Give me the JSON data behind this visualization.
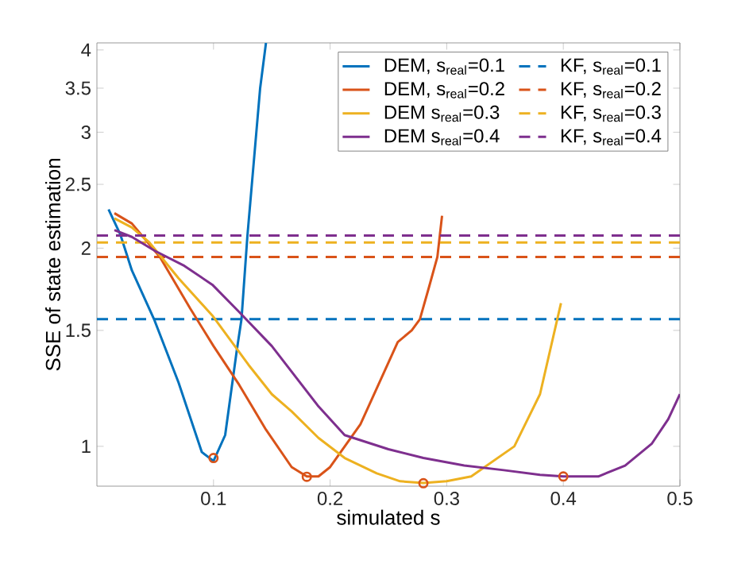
{
  "chart_data": {
    "type": "line",
    "xlabel": "simulated s",
    "ylabel": "SSE of state estimation",
    "log": "y",
    "xlim": [
      0,
      0.5
    ],
    "ylim": [
      0.87,
      4.1
    ],
    "xticks": [
      0.1,
      0.2,
      0.3,
      0.4,
      0.5
    ],
    "yticks": [
      1,
      1.5,
      2,
      2.5,
      3,
      3.5,
      4
    ],
    "legend": "top right",
    "grid": false,
    "marker": "none",
    "series": [
      {
        "name": "DEM, s$_{real}$=0.1",
        "color": "#0072bd",
        "line_style": "solid",
        "x": [
          0.01,
          0.02,
          0.03,
          0.049,
          0.07,
          0.09,
          0.1,
          0.11,
          0.12,
          0.124,
          0.129,
          0.14,
          0.145
        ],
        "values": [
          2.29,
          2.1,
          1.85,
          1.56,
          1.25,
          0.98,
          0.95,
          1.04,
          1.4,
          1.56,
          2.08,
          3.5,
          4.1
        ]
      },
      {
        "name": "KF, s$_{real}$=0.1",
        "color": "#0072bd",
        "line_style": "dashed",
        "x": [
          0,
          0.5
        ],
        "values": [
          1.56,
          1.56
        ]
      },
      {
        "name": "DEM, s$_{real}$=0.2",
        "color": "#d95319",
        "line_style": "solid",
        "x": [
          0.015,
          0.03,
          0.054,
          0.08,
          0.1,
          0.122,
          0.145,
          0.167,
          0.18,
          0.19,
          0.2,
          0.226,
          0.258,
          0.27,
          0.277,
          0.285,
          0.292,
          0.296
        ],
        "values": [
          2.26,
          2.18,
          1.94,
          1.62,
          1.42,
          1.24,
          1.06,
          0.93,
          0.9,
          0.9,
          0.93,
          1.08,
          1.44,
          1.5,
          1.56,
          1.75,
          1.94,
          2.24
        ]
      },
      {
        "name": "KF, s$_{real}$=0.2",
        "color": "#d95319",
        "line_style": "dashed",
        "x": [
          0,
          0.5
        ],
        "values": [
          1.94,
          1.94
        ]
      },
      {
        "name": "DEM s$_{real}$=0.3",
        "color": "#edb120",
        "line_style": "solid",
        "x": [
          0.015,
          0.03,
          0.045,
          0.07,
          0.099,
          0.13,
          0.15,
          0.167,
          0.19,
          0.2125,
          0.24,
          0.26,
          0.28,
          0.3,
          0.321,
          0.358,
          0.38,
          0.398
        ],
        "values": [
          2.22,
          2.15,
          2.04,
          1.8,
          1.58,
          1.33,
          1.2,
          1.13,
          1.03,
          0.96,
          0.91,
          0.885,
          0.88,
          0.885,
          0.9,
          1.0,
          1.2,
          1.65
        ]
      },
      {
        "name": "KF, s$_{real}$=0.3",
        "color": "#edb120",
        "line_style": "dashed",
        "x": [
          0,
          0.5
        ],
        "values": [
          2.04,
          2.04
        ]
      },
      {
        "name": "DEM s$_{real}$=0.4",
        "color": "#7e2f8e",
        "line_style": "solid",
        "x": [
          0.015,
          0.03,
          0.05,
          0.075,
          0.099,
          0.122,
          0.15,
          0.19,
          0.2125,
          0.25,
          0.28,
          0.315,
          0.349,
          0.38,
          0.4,
          0.43,
          0.453,
          0.476,
          0.49,
          0.5
        ],
        "values": [
          2.13,
          2.08,
          1.98,
          1.88,
          1.76,
          1.6,
          1.42,
          1.15,
          1.04,
          0.99,
          0.96,
          0.935,
          0.92,
          0.905,
          0.9,
          0.9,
          0.935,
          1.01,
          1.1,
          1.2
        ]
      },
      {
        "name": "KF, s$_{real}$=0.4",
        "color": "#7e2f8e",
        "line_style": "dashed",
        "x": [
          0,
          0.5
        ],
        "values": [
          2.09,
          2.09
        ]
      },
      {
        "type": "scatter",
        "color": "#d95319",
        "marker": "circle",
        "x": [
          0.1,
          0.18,
          0.28,
          0.4
        ],
        "values": [
          0.96,
          0.899,
          0.879,
          0.9
        ]
      }
    ]
  }
}
